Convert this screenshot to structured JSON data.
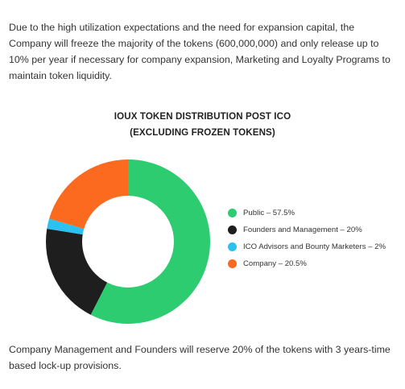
{
  "intro_text": "Due to the high utilization expectations and the need for expansion capital, the Company will freeze the majority of the tokens (600,000,000) and only release up to 10% per year if necessary for company expansion, Marketing and Loyalty Programs to maintain token liquidity.",
  "chart": {
    "title_line1": "IOUX TOKEN DISTRIBUTION POST ICO",
    "title_line2": "(EXCLUDING FROZEN TOKENS)"
  },
  "chart_data": {
    "type": "pie",
    "donut": true,
    "title": "IOUX TOKEN DISTRIBUTION POST ICO (EXCLUDING FROZEN TOKENS)",
    "legend_position": "right",
    "slices": [
      {
        "label": "Public – 57.5%",
        "category": "Public",
        "value": 57.5,
        "color": "#2ecc71"
      },
      {
        "label": "Founders and Management – 20%",
        "category": "Founders and Management",
        "value": 20,
        "color": "#1e1e1e"
      },
      {
        "label": "ICO Advisors and Bounty Marketers – 2%",
        "category": "ICO Advisors and Bounty Marketers",
        "value": 2,
        "color": "#2bc1f0"
      },
      {
        "label": "Company – 20.5%",
        "category": "Company",
        "value": 20.5,
        "color": "#fc6a1f"
      }
    ]
  },
  "outro_text": "Company Management and Founders will reserve 20% of the tokens with 3 years-time based lock-up provisions."
}
